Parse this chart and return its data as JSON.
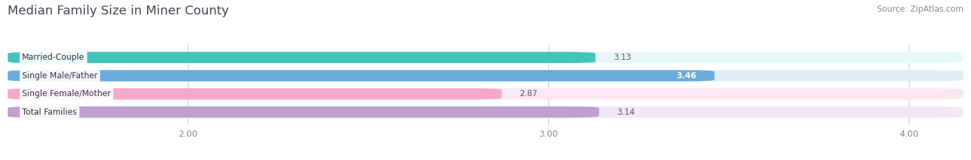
{
  "title": "Median Family Size in Miner County",
  "source": "Source: ZipAtlas.com",
  "categories": [
    "Married-Couple",
    "Single Male/Father",
    "Single Female/Mother",
    "Total Families"
  ],
  "values": [
    3.13,
    3.46,
    2.87,
    3.14
  ],
  "bar_colors": [
    "#45c4bc",
    "#6aabde",
    "#f5a8c8",
    "#c0a0cc"
  ],
  "bar_bg_colors": [
    "#e8f8f8",
    "#e0eef8",
    "#fce8f2",
    "#f0e8f5"
  ],
  "xmin": 1.5,
  "xmax": 4.15,
  "xticks": [
    2.0,
    3.0,
    4.0
  ],
  "bar_height": 0.62,
  "bar_gap": 0.38,
  "figsize": [
    14.06,
    2.33
  ],
  "dpi": 100,
  "title_fontsize": 13,
  "label_fontsize": 8.5,
  "value_fontsize": 8.5,
  "tick_fontsize": 9,
  "source_fontsize": 8.5,
  "bg_color": "#ffffff",
  "grid_color": "#cccccc",
  "title_color": "#444455",
  "source_color": "#888888",
  "tick_color": "#888888"
}
